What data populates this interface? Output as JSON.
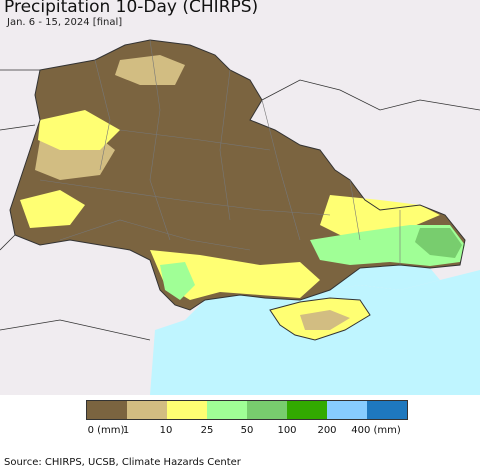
{
  "title": "Precipitation 10-Day (CHIRPS)",
  "subtitle": "Jan. 6 - 15, 2024 [final]",
  "source": "Source: CHIRPS, UCSB, Climate Hazards Center",
  "legend": {
    "colors": [
      "#7b6440",
      "#d2bd82",
      "#ffff73",
      "#a0ff96",
      "#78cd6e",
      "#32aa00",
      "#87cdff",
      "#1e78be"
    ],
    "labels": [
      "0 (mm)",
      "1",
      "10",
      "25",
      "50",
      "100",
      "200",
      "400 (mm)"
    ]
  },
  "map_colors": {
    "sea": "#bff5ff",
    "land_outside": "#f0ecf0",
    "border": "#333333"
  }
}
